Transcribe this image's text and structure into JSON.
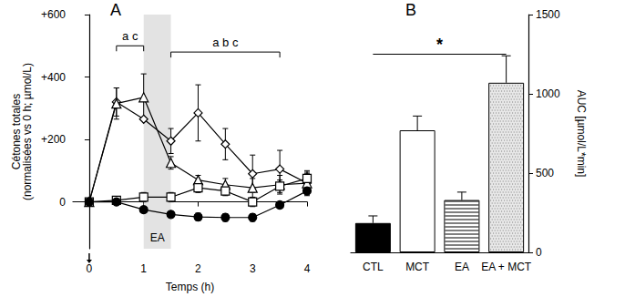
{
  "chart_data": [
    {
      "type": "line",
      "title": "A",
      "x_label": "Temps (h)",
      "y_label": "Cétones totales\n(normalisées vs 0 h; µmol/L)",
      "xlim": [
        -0.3,
        4
      ],
      "xticks": [
        0,
        1,
        2,
        3,
        4
      ],
      "ylim": [
        -150,
        600
      ],
      "yticks": [
        0,
        {
          "value": 200,
          "label": "+200"
        },
        {
          "value": 400,
          "label": "+400"
        },
        {
          "value": 600,
          "label": "+600"
        }
      ],
      "grid": false,
      "x": [
        0,
        0.5,
        1,
        1.5,
        2,
        2.5,
        3,
        3.5,
        4
      ],
      "series": [
        {
          "color": "#000000",
          "marker": "open_diamond",
          "values": [
            0,
            320,
            265,
            195,
            285,
            185,
            90,
            105,
            60
          ],
          "errors": [
            0,
            45,
            0,
            40,
            90,
            50,
            60,
            60,
            40
          ]
        },
        {
          "color": "#000000",
          "marker": "open_triangle",
          "values": [
            0,
            315,
            335,
            125,
            70,
            55,
            45,
            55,
            60
          ],
          "errors": [
            0,
            50,
            75,
            20,
            15,
            20,
            30,
            30,
            30
          ]
        },
        {
          "color": "#000000",
          "marker": "open_square",
          "values": [
            0,
            5,
            15,
            15,
            45,
            35,
            0,
            50,
            75
          ],
          "errors": [
            0,
            10,
            15,
            15,
            15,
            15,
            15,
            20,
            20
          ]
        },
        {
          "color": "#000000",
          "marker": "circle",
          "values": [
            0,
            0,
            -25,
            -40,
            -48,
            -50,
            -50,
            -10,
            35
          ],
          "errors": [
            0,
            8,
            10,
            10,
            12,
            12,
            12,
            10,
            10
          ]
        }
      ],
      "shaded": {
        "x": [
          1,
          1.5
        ],
        "label": "EA"
      },
      "annotations": [
        {
          "text": "a c",
          "x": [
            0.5,
            1
          ],
          "y": 500
        },
        {
          "text": "a b c",
          "x": [
            1.5,
            3.5
          ],
          "y": 480
        }
      ],
      "arrows": [
        {
          "x": 0
        }
      ]
    },
    {
      "type": "bar",
      "title": "B",
      "y_label": "AUC [µmol/L*min]",
      "categories": [
        "CTL",
        "MCT",
        "EA",
        "EA + MCT"
      ],
      "values": [
        185,
        770,
        330,
        1070
      ],
      "errors": [
        45,
        90,
        50,
        170
      ],
      "colors": [
        "#000000",
        "#ffffff",
        "#ffffff",
        "#e8e8e8"
      ],
      "ylim": [
        0,
        1500
      ],
      "yticks": [
        0,
        500,
        1000,
        1500
      ],
      "grid": false,
      "annotations": [
        {
          "text": "*",
          "x": [
            "CTL",
            "EA + MCT"
          ],
          "y": 1250
        }
      ]
    }
  ]
}
